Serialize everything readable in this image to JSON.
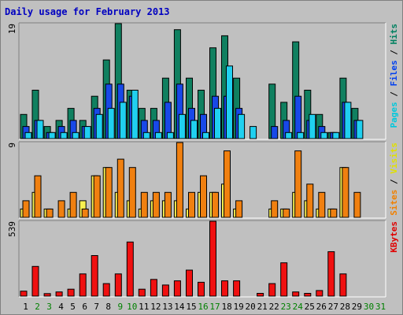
{
  "chart_data": {
    "type": "bar",
    "title": "Daily usage for February 2013",
    "categories": [
      "1",
      "2",
      "3",
      "4",
      "5",
      "6",
      "7",
      "8",
      "9",
      "10",
      "11",
      "12",
      "13",
      "14",
      "15",
      "16",
      "17",
      "18",
      "19",
      "20",
      "21",
      "22",
      "23",
      "24",
      "25",
      "26",
      "27",
      "28",
      "29",
      "30",
      "31"
    ],
    "weekend_days": [
      "2",
      "3",
      "9",
      "10",
      "16",
      "17",
      "23",
      "24",
      "30",
      "31"
    ],
    "panels": [
      {
        "id": "hits",
        "ymax_label": "19",
        "ymax": 19,
        "right_labels": [
          {
            "text": "Pages",
            "color": "#00C8DC"
          },
          {
            "text": " / ",
            "color": "#000000"
          },
          {
            "text": "Files",
            "color": "#0040F0"
          },
          {
            "text": " / ",
            "color": "#000000"
          },
          {
            "text": "Hits",
            "color": "#008060"
          }
        ],
        "series": [
          {
            "key": "hits",
            "color": "#108060",
            "values": [
              4,
              8,
              2,
              3,
              5,
              3,
              7,
              13,
              19,
              8,
              5,
              5,
              10,
              18,
              10,
              8,
              15,
              17,
              10,
              0,
              0,
              9,
              6,
              16,
              8,
              4,
              1,
              10,
              5,
              0,
              0
            ]
          },
          {
            "key": "files",
            "color": "#1848E8",
            "values": [
              2,
              3,
              1,
              2,
              3,
              2,
              5,
              9,
              9,
              7,
              3,
              3,
              6,
              9,
              5,
              4,
              7,
              7,
              5,
              0,
              0,
              2,
              3,
              7,
              3,
              2,
              1,
              6,
              3,
              0,
              0
            ]
          },
          {
            "key": "pages",
            "color": "#20D0F0",
            "values": [
              1,
              3,
              1,
              1,
              1,
              2,
              4,
              5,
              6,
              8,
              1,
              1,
              1,
              4,
              3,
              1,
              5,
              12,
              4,
              2,
              0,
              0,
              1,
              1,
              4,
              1,
              1,
              6,
              3,
              0,
              0
            ]
          }
        ]
      },
      {
        "id": "visits",
        "ymax_label": "9",
        "ymax": 9,
        "right_labels": [
          {
            "text": "Sites",
            "color": "#F08000"
          },
          {
            "text": " / ",
            "color": "#000000"
          },
          {
            "text": "Visits",
            "color": "#E0E000"
          }
        ],
        "series": [
          {
            "key": "visits",
            "color": "#F8F050",
            "values": [
              1,
              3,
              1,
              0,
              1,
              2,
              5,
              6,
              3,
              2,
              1,
              2,
              2,
              2,
              1,
              3,
              3,
              4,
              1,
              0,
              0,
              1,
              1,
              3,
              2,
              1,
              1,
              6,
              0,
              0,
              0
            ]
          },
          {
            "key": "sites",
            "color": "#F08010",
            "values": [
              2,
              5,
              1,
              2,
              3,
              1,
              5,
              6,
              7,
              6,
              3,
              3,
              3,
              9,
              3,
              5,
              3,
              8,
              2,
              0,
              0,
              2,
              1,
              8,
              4,
              3,
              1,
              6,
              3,
              0,
              0
            ]
          }
        ]
      },
      {
        "id": "kbytes",
        "ymax_label": "539",
        "ymax": 539,
        "right_labels": [
          {
            "text": "KBytes",
            "color": "#E00000"
          }
        ],
        "series": [
          {
            "key": "kbytes",
            "color": "#F01010",
            "values": [
              36,
              214,
              18,
              30,
              50,
              160,
              292,
              90,
              160,
              390,
              50,
              120,
              80,
              110,
              187,
              100,
              539,
              110,
              110,
              0,
              20,
              90,
              240,
              30,
              20,
              40,
              320,
              160,
              0,
              0,
              0
            ]
          }
        ]
      }
    ]
  },
  "colors": {
    "background": "#C0C0C0",
    "panel": "#C0C0C0",
    "title": "#0000C0",
    "weekday_label": "#000000",
    "weekend_label": "#008000"
  }
}
